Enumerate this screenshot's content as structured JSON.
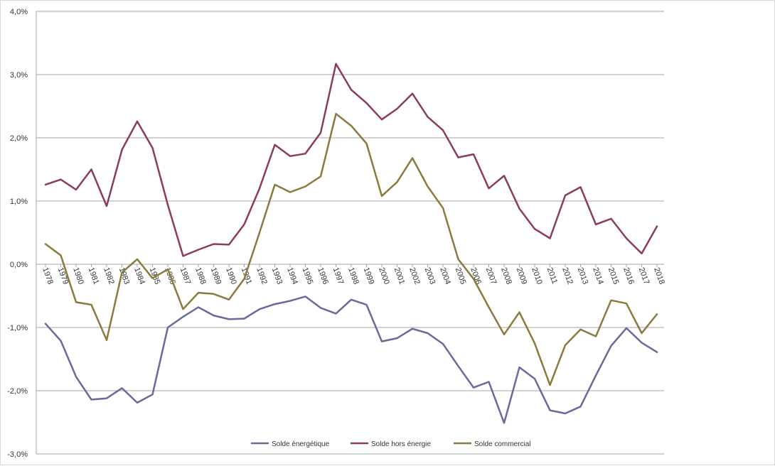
{
  "chart_data": {
    "type": "line",
    "title": "",
    "xlabel": "",
    "ylabel": "",
    "ylim": [
      -0.03,
      0.04
    ],
    "y_ticks": [
      -0.03,
      -0.02,
      -0.01,
      0.0,
      0.01,
      0.02,
      0.03,
      0.04
    ],
    "y_tick_labels": [
      "-3,0%",
      "-2,0%",
      "-1,0%",
      "0,0%",
      "1,0%",
      "2,0%",
      "3,0%",
      "4,0%"
    ],
    "grid": "horizontal",
    "legend_position": "bottom",
    "categories": [
      "1978",
      "1979",
      "1980",
      "1981",
      "1982",
      "1983",
      "1984",
      "1985",
      "1986",
      "1987",
      "1988",
      "1989",
      "1990",
      "1991",
      "1992",
      "1993",
      "1994",
      "1995",
      "1996",
      "1997",
      "1998",
      "1999",
      "2000",
      "2001",
      "2002",
      "2003",
      "2004",
      "2005",
      "2006",
      "2007",
      "2008",
      "2009",
      "2010",
      "2011",
      "2012",
      "2013",
      "2014",
      "2015",
      "2016",
      "2017",
      "2018"
    ],
    "series": [
      {
        "name": "Solde énergétique",
        "color": "#6b6999",
        "values": [
          -0.0094,
          -0.0121,
          -0.0178,
          -0.0214,
          -0.0212,
          -0.0196,
          -0.0219,
          -0.0206,
          -0.01,
          -0.0083,
          -0.0068,
          -0.0081,
          -0.0087,
          -0.0086,
          -0.0071,
          -0.0063,
          -0.0058,
          -0.0051,
          -0.0069,
          -0.0078,
          -0.0056,
          -0.0064,
          -0.0122,
          -0.0117,
          -0.0102,
          -0.0109,
          -0.0126,
          -0.0161,
          -0.0195,
          -0.0186,
          -0.0251,
          -0.0163,
          -0.0181,
          -0.0231,
          -0.0236,
          -0.0225,
          -0.0176,
          -0.0129,
          -0.0101,
          -0.0124,
          -0.0139
        ]
      },
      {
        "name": "Solde hors énergie",
        "color": "#8b3a62",
        "values": [
          0.0126,
          0.0134,
          0.0118,
          0.015,
          0.0092,
          0.0181,
          0.0226,
          0.0184,
          0.0094,
          0.0013,
          0.0023,
          0.0032,
          0.0031,
          0.0063,
          0.012,
          0.0189,
          0.0171,
          0.0175,
          0.0208,
          0.0317,
          0.0276,
          0.0255,
          0.0229,
          0.0246,
          0.027,
          0.0233,
          0.0212,
          0.0169,
          0.0174,
          0.012,
          0.014,
          0.0088,
          0.0056,
          0.0041,
          0.0109,
          0.0122,
          0.0063,
          0.0072,
          0.0041,
          0.0017,
          0.006
        ]
      },
      {
        "name": "Solde commercial",
        "color": "#8c7a3c",
        "values": [
          0.0032,
          0.0014,
          -0.006,
          -0.0064,
          -0.012,
          -0.0013,
          0.0008,
          -0.0022,
          -0.0008,
          -0.0071,
          -0.0045,
          -0.0047,
          -0.0056,
          -0.0023,
          0.005,
          0.0126,
          0.0114,
          0.0123,
          0.0139,
          0.0238,
          0.0219,
          0.0191,
          0.0108,
          0.013,
          0.0168,
          0.0123,
          0.0089,
          0.0008,
          -0.0023,
          -0.0068,
          -0.0111,
          -0.0076,
          -0.0125,
          -0.0191,
          -0.0128,
          -0.0103,
          -0.0114,
          -0.0057,
          -0.0062,
          -0.0109,
          -0.0079
        ]
      }
    ]
  }
}
